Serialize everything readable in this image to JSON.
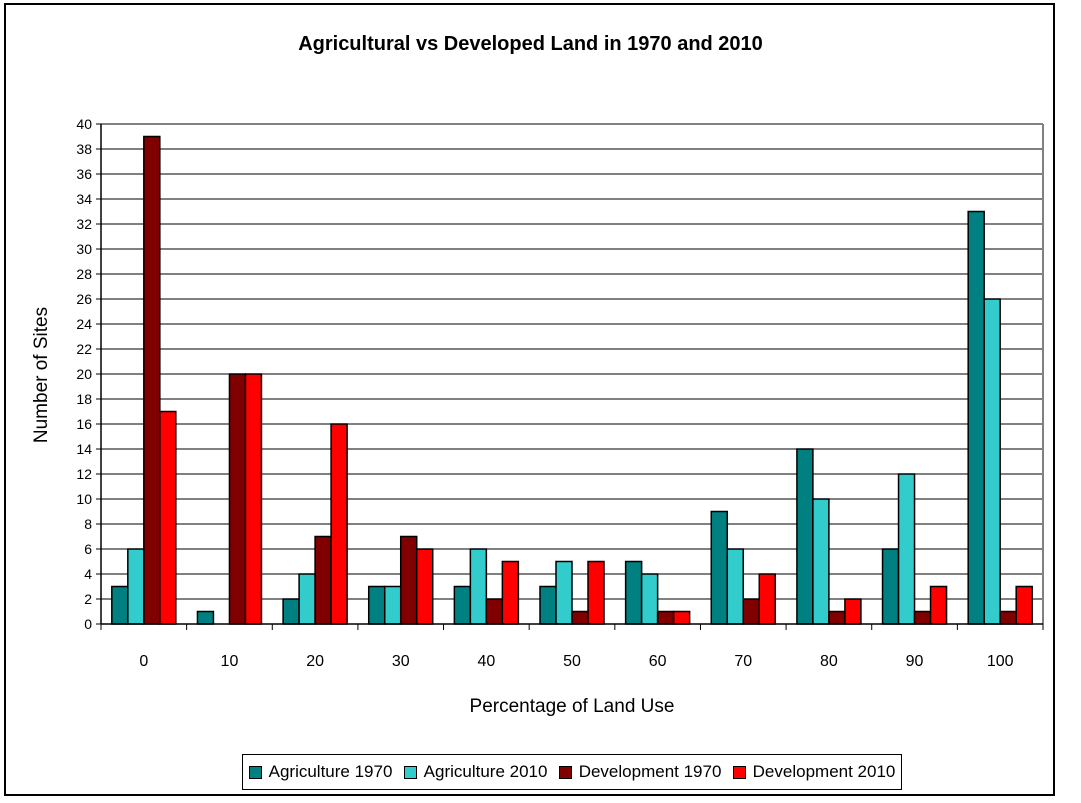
{
  "chart_data": {
    "type": "bar",
    "title": "Agricultural vs Developed Land in 1970 and 2010",
    "xlabel": "Percentage of Land Use",
    "ylabel": "Number of Sites",
    "ylim": [
      0,
      40
    ],
    "y_ticks": [
      "0",
      "2",
      "4",
      "6",
      "8",
      "10",
      "12",
      "14",
      "16",
      "18",
      "20",
      "22",
      "24",
      "26",
      "28",
      "30",
      "32",
      "34",
      "36",
      "38",
      "40"
    ],
    "categories": [
      "0",
      "10",
      "20",
      "30",
      "40",
      "50",
      "60",
      "70",
      "80",
      "90",
      "100"
    ],
    "grid": true,
    "legend_position": "bottom",
    "series": [
      {
        "name": "Agriculture 1970",
        "color": "#008080",
        "values": [
          3,
          1,
          2,
          3,
          3,
          3,
          5,
          9,
          14,
          6,
          33
        ]
      },
      {
        "name": "Agriculture 2010",
        "color": "#33CCCC",
        "values": [
          6,
          0,
          4,
          3,
          6,
          5,
          4,
          6,
          10,
          12,
          26
        ]
      },
      {
        "name": "Development 1970",
        "color": "#800000",
        "values": [
          39,
          20,
          7,
          7,
          2,
          1,
          1,
          2,
          1,
          1,
          1
        ]
      },
      {
        "name": "Development 2010",
        "color": "#FF0000",
        "values": [
          17,
          20,
          16,
          6,
          5,
          5,
          1,
          4,
          2,
          3,
          3
        ]
      }
    ]
  }
}
